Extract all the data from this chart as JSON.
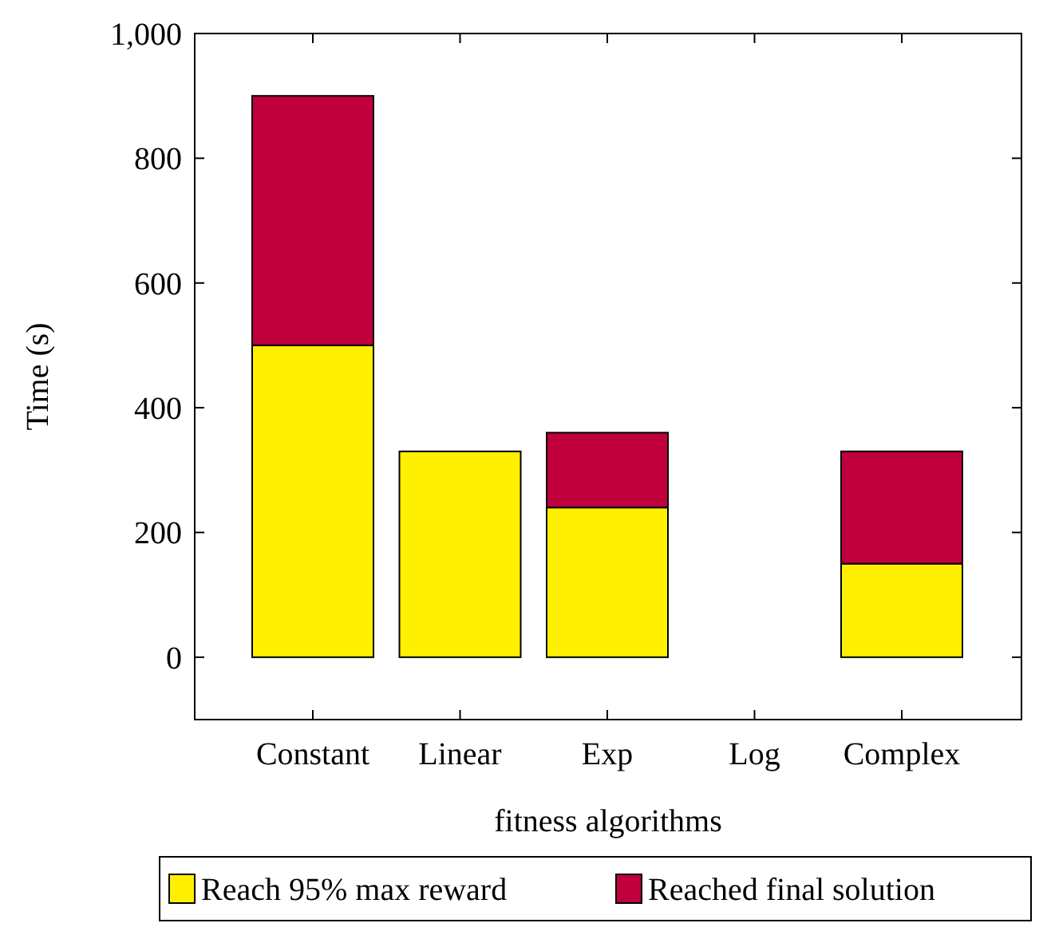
{
  "chart_data": {
    "type": "bar",
    "stacked": true,
    "xlabel": "fitness algorithms",
    "ylabel": "Time (s)",
    "categories": [
      "Constant",
      "Linear",
      "Exp",
      "Log",
      "Complex"
    ],
    "series": [
      {
        "name": "Reach 95% max reward",
        "color": "#fff000",
        "values": [
          500,
          330,
          240,
          0,
          150
        ]
      },
      {
        "name": "Reached final solution",
        "color": "#c0003c",
        "values": [
          400,
          0,
          120,
          0,
          180
        ]
      }
    ],
    "ylim": [
      -100,
      1000
    ],
    "yticks": [
      0,
      200,
      400,
      600,
      800,
      {
        "value": 1000,
        "label": "1,000"
      }
    ],
    "legend": "bottom"
  }
}
